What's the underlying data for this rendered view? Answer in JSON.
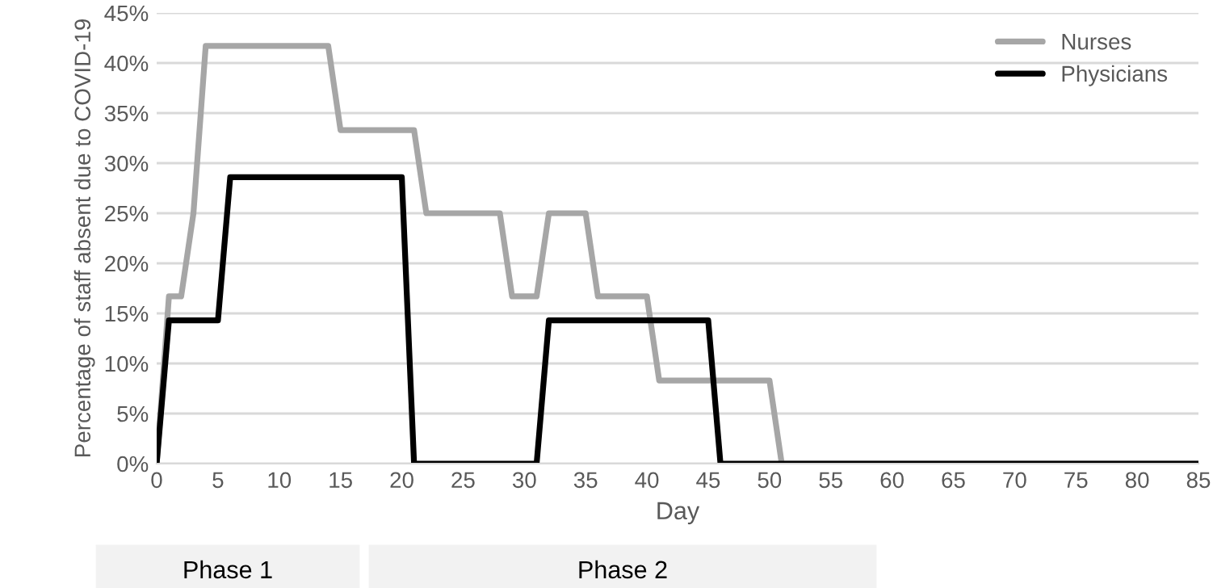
{
  "chart_data": {
    "type": "line",
    "xlabel": "Day",
    "ylabel": "Percentage of staff absent due to COVID-19",
    "x": [
      0,
      1,
      2,
      3,
      4,
      5,
      6,
      7,
      8,
      9,
      10,
      11,
      12,
      13,
      14,
      15,
      16,
      17,
      18,
      19,
      20,
      21,
      22,
      23,
      24,
      25,
      26,
      27,
      28,
      29,
      30,
      31,
      32,
      33,
      34,
      35,
      36,
      37,
      38,
      39,
      40,
      41,
      42,
      43,
      44,
      45,
      46,
      47,
      48,
      49,
      50,
      51,
      52,
      53,
      54,
      55,
      56,
      57,
      58,
      59,
      60,
      61,
      62,
      63,
      64,
      65,
      66,
      67,
      68,
      69,
      70,
      71,
      72,
      73,
      74,
      75,
      76,
      77,
      78,
      79,
      80,
      81,
      82,
      83,
      84,
      85
    ],
    "series": [
      {
        "name": "Nurses",
        "color": "#a6a6a6",
        "values": [
          0,
          16.7,
          16.7,
          25,
          41.7,
          41.7,
          41.7,
          41.7,
          41.7,
          41.7,
          41.7,
          41.7,
          41.7,
          41.7,
          41.7,
          33.3,
          33.3,
          33.3,
          33.3,
          33.3,
          33.3,
          33.3,
          25,
          25,
          25,
          25,
          25,
          25,
          25,
          16.7,
          16.7,
          16.7,
          25,
          25,
          25,
          25,
          16.7,
          16.7,
          16.7,
          16.7,
          16.7,
          8.3,
          8.3,
          8.3,
          8.3,
          8.3,
          8.3,
          8.3,
          8.3,
          8.3,
          8.3,
          0,
          0,
          0,
          0,
          0,
          0,
          0,
          0,
          0,
          0,
          0,
          0,
          0,
          0,
          0,
          0,
          0,
          0,
          0,
          0,
          0,
          0,
          0,
          0,
          0,
          0,
          0,
          0,
          0,
          0,
          0,
          0,
          0,
          0,
          0
        ]
      },
      {
        "name": "Physicians",
        "color": "#000000",
        "values": [
          0,
          14.3,
          14.3,
          14.3,
          14.3,
          14.3,
          28.6,
          28.6,
          28.6,
          28.6,
          28.6,
          28.6,
          28.6,
          28.6,
          28.6,
          28.6,
          28.6,
          28.6,
          28.6,
          28.6,
          28.6,
          0,
          0,
          0,
          0,
          0,
          0,
          0,
          0,
          0,
          0,
          0,
          14.3,
          14.3,
          14.3,
          14.3,
          14.3,
          14.3,
          14.3,
          14.3,
          14.3,
          14.3,
          14.3,
          14.3,
          14.3,
          14.3,
          0,
          0,
          0,
          0,
          0,
          0,
          0,
          0,
          0,
          0,
          0,
          0,
          0,
          0,
          0,
          0,
          0,
          0,
          0,
          0,
          0,
          0,
          0,
          0,
          0,
          0,
          0,
          0,
          0,
          0,
          0,
          0,
          0,
          0,
          0,
          0,
          0,
          0,
          0,
          0
        ]
      }
    ],
    "xlim": [
      0,
      85
    ],
    "xticks": [
      0,
      5,
      10,
      15,
      20,
      25,
      30,
      35,
      40,
      45,
      50,
      55,
      60,
      65,
      70,
      75,
      80,
      85
    ],
    "ylim": [
      0,
      45
    ],
    "yticks": [
      {
        "value": 0,
        "label": "0%"
      },
      {
        "value": 5,
        "label": "5%"
      },
      {
        "value": 10,
        "label": "10%"
      },
      {
        "value": 15,
        "label": "15%"
      },
      {
        "value": 20,
        "label": "20%"
      },
      {
        "value": 25,
        "label": "25%"
      },
      {
        "value": 30,
        "label": "30%"
      },
      {
        "value": 35,
        "label": "35%"
      },
      {
        "value": 40,
        "label": "40%"
      },
      {
        "value": 45,
        "label": "45%"
      }
    ],
    "grid": "y",
    "legend": "top right",
    "marker": "none",
    "line_style": "solid",
    "annotations": [
      "Phase 1",
      "Phase 2"
    ]
  }
}
